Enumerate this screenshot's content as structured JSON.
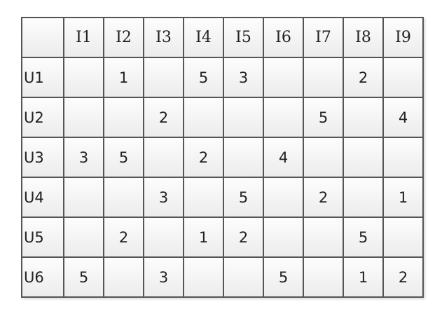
{
  "columns": [
    "I1",
    "I2",
    "I3",
    "I4",
    "I5",
    "I6",
    "I7",
    "I8",
    "I9"
  ],
  "rows": [
    {
      "label": "U1",
      "values": [
        "",
        "1",
        "",
        "5",
        "3",
        "",
        "",
        "2",
        ""
      ]
    },
    {
      "label": "U2",
      "values": [
        "",
        "",
        "2",
        "",
        "",
        "",
        "5",
        "",
        "4"
      ]
    },
    {
      "label": "U3",
      "values": [
        "3",
        "5",
        "",
        "2",
        "",
        "4",
        "",
        "",
        ""
      ]
    },
    {
      "label": "U4",
      "values": [
        "",
        "",
        "3",
        "",
        "5",
        "",
        "2",
        "",
        "1"
      ]
    },
    {
      "label": "U5",
      "values": [
        "",
        "2",
        "",
        "1",
        "2",
        "",
        "",
        "5",
        ""
      ]
    },
    {
      "label": "U6",
      "values": [
        "5",
        "",
        "3",
        "",
        "",
        "5",
        "",
        "1",
        "2"
      ]
    }
  ]
}
